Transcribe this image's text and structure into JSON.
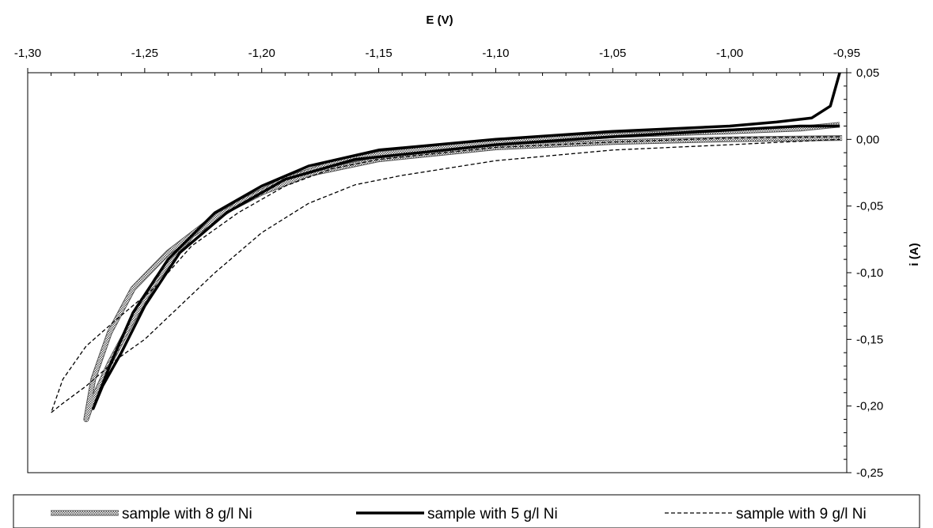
{
  "chart_data": {
    "type": "line",
    "xlabel": "E (V)",
    "ylabel": "i (A)",
    "xlim": [
      -1.3,
      -0.95
    ],
    "ylim": [
      -0.25,
      0.05
    ],
    "x_axis_position": "top",
    "y_axis_position": "right",
    "xticks": [
      -1.3,
      -1.25,
      -1.2,
      -1.15,
      -1.1,
      -1.05,
      -1.0,
      -0.95
    ],
    "xtick_labels": [
      "-1,30",
      "-1,25",
      "-1,20",
      "-1,15",
      "-1,10",
      "-1,05",
      "-1,00",
      "-0,95"
    ],
    "yticks": [
      0.05,
      0.0,
      -0.05,
      -0.1,
      -0.15,
      -0.2,
      -0.25
    ],
    "ytick_labels": [
      "0,05",
      "0,00",
      "-0,05",
      "-0,10",
      "-0,15",
      "-0,20",
      "-0,25"
    ],
    "grid": false,
    "legend": "bottom",
    "series": [
      {
        "name": "sample with 8 g/l Ni",
        "style": "hatched",
        "points": [
          [
            -0.952,
            0.001
          ],
          [
            -1.0,
            0.0
          ],
          [
            -1.05,
            -0.002
          ],
          [
            -1.1,
            -0.006
          ],
          [
            -1.15,
            -0.015
          ],
          [
            -1.18,
            -0.026
          ],
          [
            -1.2,
            -0.04
          ],
          [
            -1.22,
            -0.058
          ],
          [
            -1.24,
            -0.085
          ],
          [
            -1.255,
            -0.112
          ],
          [
            -1.265,
            -0.145
          ],
          [
            -1.272,
            -0.18
          ],
          [
            -1.275,
            -0.21
          ],
          [
            -1.272,
            -0.195
          ],
          [
            -1.265,
            -0.168
          ],
          [
            -1.255,
            -0.135
          ],
          [
            -1.245,
            -0.105
          ],
          [
            -1.23,
            -0.072
          ],
          [
            -1.21,
            -0.048
          ],
          [
            -1.19,
            -0.03
          ],
          [
            -1.17,
            -0.018
          ],
          [
            -1.15,
            -0.011
          ],
          [
            -1.1,
            -0.002
          ],
          [
            -1.05,
            0.003
          ],
          [
            -1.0,
            0.006
          ],
          [
            -0.97,
            0.008
          ],
          [
            -0.953,
            0.011
          ]
        ]
      },
      {
        "name": "sample with 5 g/l Ni",
        "style": "solid-thick",
        "points": [
          [
            -0.953,
            0.05
          ],
          [
            -0.957,
            0.025
          ],
          [
            -0.965,
            0.016
          ],
          [
            -0.98,
            0.013
          ],
          [
            -1.0,
            0.01
          ],
          [
            -1.05,
            0.006
          ],
          [
            -1.1,
            0.0
          ],
          [
            -1.15,
            -0.008
          ],
          [
            -1.18,
            -0.02
          ],
          [
            -1.2,
            -0.035
          ],
          [
            -1.22,
            -0.055
          ],
          [
            -1.24,
            -0.09
          ],
          [
            -1.255,
            -0.13
          ],
          [
            -1.265,
            -0.17
          ],
          [
            -1.272,
            -0.202
          ],
          [
            -1.268,
            -0.185
          ],
          [
            -1.26,
            -0.16
          ],
          [
            -1.25,
            -0.125
          ],
          [
            -1.235,
            -0.085
          ],
          [
            -1.215,
            -0.055
          ],
          [
            -1.19,
            -0.03
          ],
          [
            -1.16,
            -0.015
          ],
          [
            -1.1,
            -0.004
          ],
          [
            -1.05,
            0.002
          ],
          [
            -1.0,
            0.007
          ],
          [
            -0.97,
            0.01
          ],
          [
            -0.953,
            0.01
          ]
        ]
      },
      {
        "name": "sample with 9 g/l Ni",
        "style": "dashed",
        "points": [
          [
            -0.953,
            0.002
          ],
          [
            -1.0,
            0.001
          ],
          [
            -1.05,
            -0.002
          ],
          [
            -1.1,
            -0.006
          ],
          [
            -1.15,
            -0.015
          ],
          [
            -1.17,
            -0.022
          ],
          [
            -1.19,
            -0.035
          ],
          [
            -1.21,
            -0.055
          ],
          [
            -1.23,
            -0.08
          ],
          [
            -1.245,
            -0.11
          ],
          [
            -1.262,
            -0.135
          ],
          [
            -1.275,
            -0.155
          ],
          [
            -1.285,
            -0.18
          ],
          [
            -1.29,
            -0.205
          ],
          [
            -1.285,
            -0.198
          ],
          [
            -1.275,
            -0.185
          ],
          [
            -1.262,
            -0.165
          ],
          [
            -1.25,
            -0.15
          ],
          [
            -1.235,
            -0.125
          ],
          [
            -1.22,
            -0.1
          ],
          [
            -1.2,
            -0.07
          ],
          [
            -1.18,
            -0.048
          ],
          [
            -1.16,
            -0.034
          ],
          [
            -1.14,
            -0.027
          ],
          [
            -1.1,
            -0.016
          ],
          [
            -1.05,
            -0.008
          ],
          [
            -1.0,
            -0.004
          ],
          [
            -0.953,
            0.0
          ]
        ]
      }
    ]
  }
}
